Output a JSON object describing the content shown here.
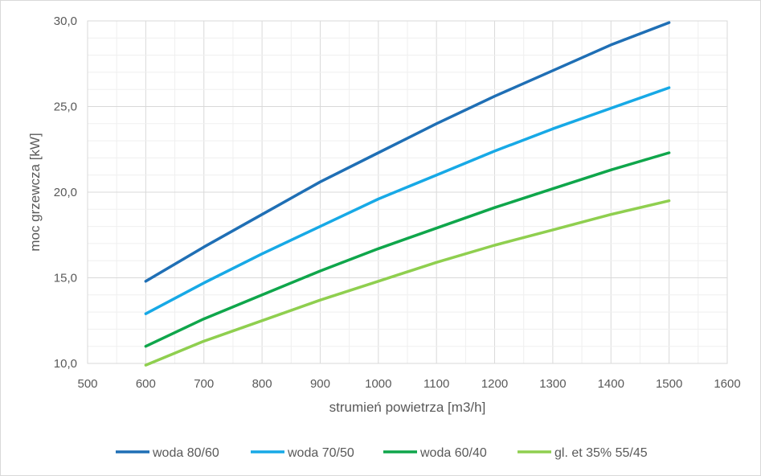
{
  "chart_data": {
    "type": "line",
    "title": "",
    "xlabel": "strumień powietrza [m3/h]",
    "ylabel": "moc grzewcza [kW]",
    "xlim": [
      500,
      1600
    ],
    "ylim": [
      10,
      30
    ],
    "x_ticks": [
      "500",
      "600",
      "700",
      "800",
      "900",
      "1000",
      "1100",
      "1200",
      "1300",
      "1400",
      "1500",
      "1600"
    ],
    "y_ticks": [
      "10,0",
      "15,0",
      "20,0",
      "25,0",
      "30,0"
    ],
    "grid": true,
    "legend_position": "bottom",
    "x": [
      600,
      700,
      800,
      900,
      1000,
      1100,
      1200,
      1300,
      1400,
      1500
    ],
    "series": [
      {
        "name": "woda 80/60",
        "color": "#1f6fb5",
        "values": [
          14.8,
          16.8,
          18.7,
          20.6,
          22.3,
          24.0,
          25.6,
          27.1,
          28.6,
          29.9
        ]
      },
      {
        "name": "woda 70/50",
        "color": "#17a9e6",
        "values": [
          12.9,
          14.7,
          16.4,
          18.0,
          19.6,
          21.0,
          22.4,
          23.7,
          24.9,
          26.1
        ]
      },
      {
        "name": "woda 60/40",
        "color": "#0fa64b",
        "values": [
          11.0,
          12.6,
          14.0,
          15.4,
          16.7,
          17.9,
          19.1,
          20.2,
          21.3,
          22.3
        ]
      },
      {
        "name": "gl. et 35% 55/45",
        "color": "#8fcf4f",
        "values": [
          9.9,
          11.3,
          12.5,
          13.7,
          14.8,
          15.9,
          16.9,
          17.8,
          18.7,
          19.5
        ]
      }
    ]
  }
}
